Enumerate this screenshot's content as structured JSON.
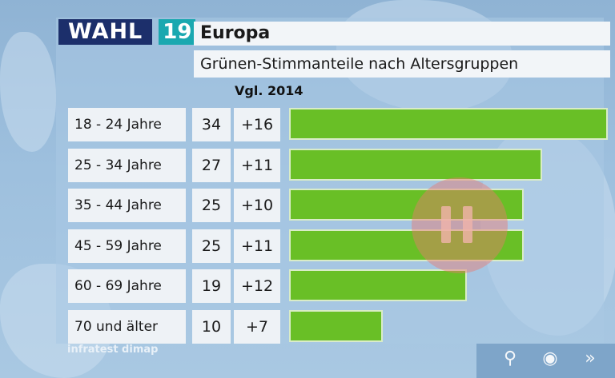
{
  "header": {
    "logo_wahl": "WAHL",
    "logo_year": "19",
    "title": "Europa",
    "subtitle": "Grünen-Stimmanteile nach Altersgruppen",
    "comparison_label": "Vgl. 2014"
  },
  "source": "infratest dimap",
  "colors": {
    "bar": "#69bf26",
    "logo_dark": "#1c2f6b",
    "logo_accent": "#1aa8b0"
  },
  "controls": {
    "search_icon": "⚲",
    "record_icon": "◉",
    "forward_icon": "»"
  },
  "rows": [
    {
      "label": "18 - 24 Jahre",
      "value": "34",
      "delta": "+16"
    },
    {
      "label": "25 - 34 Jahre",
      "value": "27",
      "delta": "+11"
    },
    {
      "label": "35 - 44 Jahre",
      "value": "25",
      "delta": "+10"
    },
    {
      "label": "45 - 59 Jahre",
      "value": "25",
      "delta": "+11"
    },
    {
      "label": "60 - 69 Jahre",
      "value": "19",
      "delta": "+12"
    },
    {
      "label": "70 und älter",
      "value": "10",
      "delta": "+7"
    }
  ],
  "chart_data": {
    "type": "bar",
    "orientation": "horizontal",
    "title": "Grünen-Stimmanteile nach Altersgruppen",
    "categories": [
      "18 - 24 Jahre",
      "25 - 34 Jahre",
      "35 - 44 Jahre",
      "45 - 59 Jahre",
      "60 - 69 Jahre",
      "70 und älter"
    ],
    "values": [
      34,
      27,
      25,
      25,
      19,
      10
    ],
    "change_vs_2014": [
      16,
      11,
      10,
      11,
      12,
      7
    ],
    "xlim": [
      0,
      34
    ],
    "grid": false
  }
}
